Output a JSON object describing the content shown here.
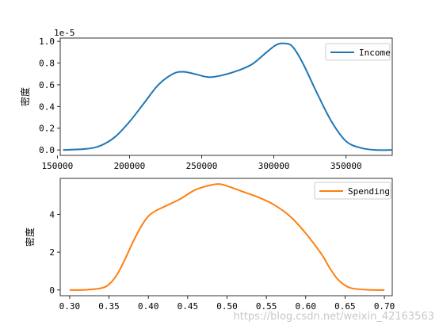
{
  "chart_data": [
    {
      "type": "line",
      "ylabel": "密度",
      "y_offset_label": "1e-5",
      "xlim": [
        152000,
        382000
      ],
      "ylim": [
        -0.05,
        1.03
      ],
      "x_ticks": [
        {
          "value": 150000,
          "label": "150000"
        },
        {
          "value": 200000,
          "label": "200000"
        },
        {
          "value": 250000,
          "label": "250000"
        },
        {
          "value": 300000,
          "label": "300000"
        },
        {
          "value": 350000,
          "label": "350000"
        }
      ],
      "y_ticks": [
        {
          "value": 0.0,
          "label": "0.0"
        },
        {
          "value": 0.2,
          "label": "0.2"
        },
        {
          "value": 0.4,
          "label": "0.4"
        },
        {
          "value": 0.6,
          "label": "0.6"
        },
        {
          "value": 0.8,
          "label": "0.8"
        },
        {
          "value": 1.0,
          "label": "1.0"
        }
      ],
      "legend_position": "top-right",
      "series": [
        {
          "name": "Income",
          "color": "#1f77b4",
          "x": [
            154000,
            170000,
            180000,
            190000,
            200000,
            210000,
            220000,
            230000,
            237000,
            245000,
            255000,
            265000,
            275000,
            285000,
            295000,
            302000,
            308000,
            313000,
            320000,
            330000,
            340000,
            350000,
            360000,
            370000,
            382000
          ],
          "y": [
            0.0,
            0.01,
            0.04,
            0.12,
            0.26,
            0.43,
            0.6,
            0.7,
            0.72,
            0.7,
            0.67,
            0.69,
            0.73,
            0.79,
            0.9,
            0.97,
            0.98,
            0.95,
            0.8,
            0.52,
            0.26,
            0.08,
            0.02,
            0.0,
            0.0
          ]
        }
      ]
    },
    {
      "type": "line",
      "ylabel": "密度",
      "xlim": [
        0.288,
        0.71
      ],
      "ylim": [
        -0.3,
        5.9
      ],
      "x_ticks": [
        {
          "value": 0.3,
          "label": "0.30"
        },
        {
          "value": 0.35,
          "label": "0.35"
        },
        {
          "value": 0.4,
          "label": "0.40"
        },
        {
          "value": 0.45,
          "label": "0.45"
        },
        {
          "value": 0.5,
          "label": "0.50"
        },
        {
          "value": 0.55,
          "label": "0.55"
        },
        {
          "value": 0.6,
          "label": "0.60"
        },
        {
          "value": 0.65,
          "label": "0.65"
        },
        {
          "value": 0.7,
          "label": "0.70"
        }
      ],
      "y_ticks": [
        {
          "value": 0,
          "label": "0"
        },
        {
          "value": 2,
          "label": "2"
        },
        {
          "value": 4,
          "label": "4"
        }
      ],
      "legend_position": "top-right",
      "series": [
        {
          "name": "Spending",
          "color": "#ff7f0e",
          "x": [
            0.3,
            0.32,
            0.34,
            0.35,
            0.36,
            0.37,
            0.38,
            0.39,
            0.4,
            0.41,
            0.42,
            0.44,
            0.46,
            0.48,
            0.49,
            0.5,
            0.52,
            0.54,
            0.56,
            0.58,
            0.6,
            0.62,
            0.63,
            0.64,
            0.65,
            0.66,
            0.68,
            0.7
          ],
          "y": [
            0.0,
            0.01,
            0.1,
            0.3,
            0.8,
            1.6,
            2.5,
            3.3,
            3.9,
            4.2,
            4.4,
            4.8,
            5.3,
            5.55,
            5.6,
            5.5,
            5.2,
            4.9,
            4.5,
            3.9,
            3.0,
            1.9,
            1.2,
            0.6,
            0.25,
            0.08,
            0.01,
            0.0
          ]
        }
      ]
    }
  ],
  "watermark": "https://blog.csdn.net/weixin_42163563"
}
